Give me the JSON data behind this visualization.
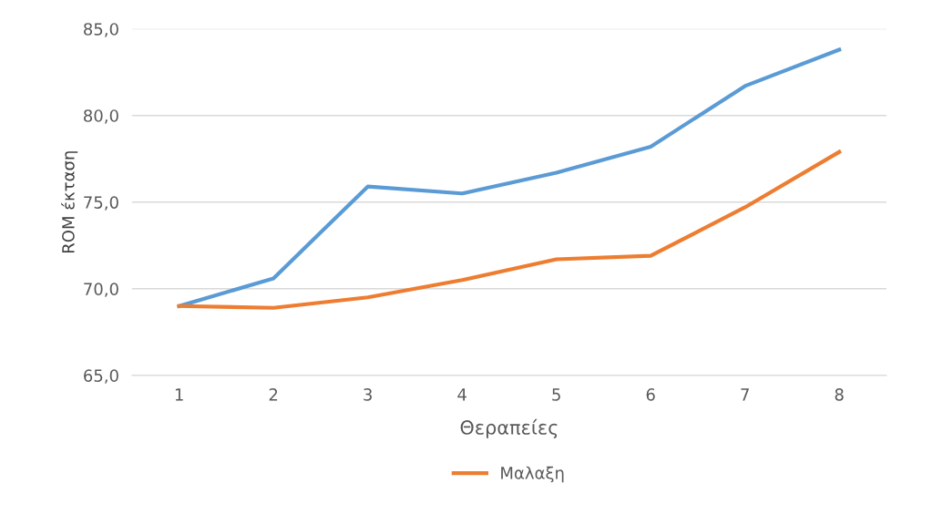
{
  "chart_data": {
    "type": "line",
    "xlabel": "Θεραπείες",
    "ylabel": "ROM έκταση",
    "categories": [
      "1",
      "2",
      "3",
      "4",
      "5",
      "6",
      "7",
      "8"
    ],
    "series": [
      {
        "color": "#5b9bd5",
        "values": [
          69.0,
          70.6,
          75.9,
          75.5,
          76.7,
          78.2,
          81.7,
          83.8
        ]
      },
      {
        "name": "Μαλαξη",
        "color": "#ed7d31",
        "values": [
          69.0,
          68.9,
          69.5,
          70.5,
          71.7,
          71.9,
          74.7,
          77.9
        ]
      }
    ],
    "ylim": [
      65,
      85
    ],
    "yticks": [
      {
        "value": 65,
        "label": "65,0"
      },
      {
        "value": 70,
        "label": "70,0"
      },
      {
        "value": 75,
        "label": "75,0"
      },
      {
        "value": 80,
        "label": "80,0"
      },
      {
        "value": 85,
        "label": "85,0"
      }
    ],
    "grid": "y",
    "legend": "bottom",
    "marker": "none",
    "line_style": "solid"
  }
}
